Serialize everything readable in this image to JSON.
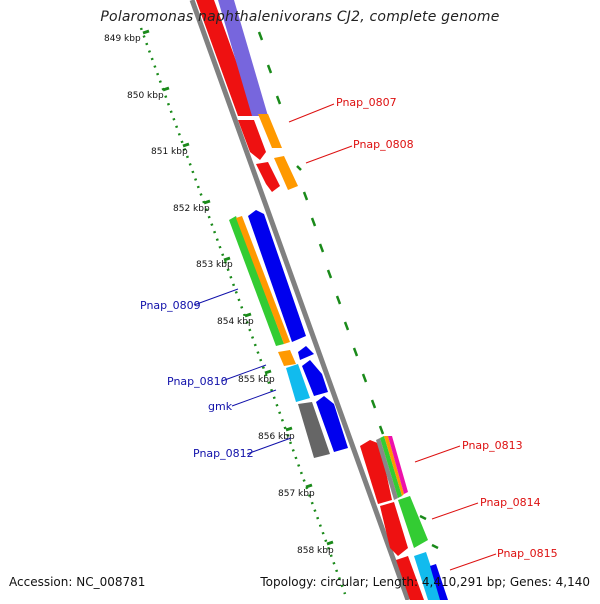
{
  "title": "Polaromonas naphthalenivorans CJ2, complete genome",
  "accession": "Accession: NC_008781",
  "summary": "Topology: circular; Length: 4,410,291 bp; Genes: 4,140",
  "scale_labels": [
    "849 kbp",
    "850 kbp",
    "851 kbp",
    "852 kbp",
    "853 kbp",
    "854 kbp",
    "855 kbp",
    "856 kbp",
    "857 kbp",
    "858 kbp"
  ],
  "gene_labels_right": [
    {
      "name": "Pnap_0807",
      "color": "#dd1111"
    },
    {
      "name": "Pnap_0808",
      "color": "#dd1111"
    },
    {
      "name": "Pnap_0813",
      "color": "#dd1111"
    },
    {
      "name": "Pnap_0814",
      "color": "#dd1111"
    },
    {
      "name": "Pnap_0815",
      "color": "#dd1111"
    }
  ],
  "gene_labels_left": [
    {
      "name": "Pnap_0809",
      "color": "#1111aa"
    },
    {
      "name": "Pnap_0810",
      "color": "#1111aa"
    },
    {
      "name": "gmk",
      "color": "#1111aa"
    },
    {
      "name": "Pnap_0812",
      "color": "#1111aa"
    }
  ],
  "colors": {
    "backbone": "#808080",
    "scale": "#1a8a1a",
    "red": "#ee1111",
    "orange": "#ff9900",
    "purple": "#7766dd",
    "blue": "#0000ee",
    "green": "#33cc33",
    "cyan": "#11bbee",
    "dark_gray": "#666666",
    "magenta": "#ee11aa"
  }
}
